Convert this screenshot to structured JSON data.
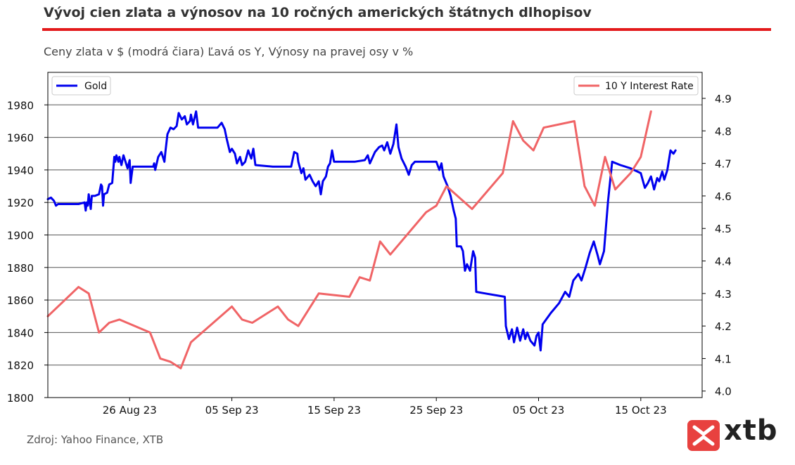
{
  "header": {
    "title": "Vývoj cien zlata a výnosov na 10 ročných amerických štátnych dlhopisov",
    "subtitle": "Ceny zlata v $ (modrá čiara) Ľavá os Y, Výnosy na pravej osy v %",
    "accent_color": "#e3191b"
  },
  "footer": {
    "source": "Zdroj: Yahoo Finance, XTB",
    "logo_text": "xtb",
    "logo_color": "#e8413f"
  },
  "chart_data": {
    "type": "line",
    "title": "",
    "x_domain": [
      17,
      81
    ],
    "x_ticks": [
      {
        "x": 25,
        "label": "26 Aug 23"
      },
      {
        "x": 35,
        "label": "05 Sep 23"
      },
      {
        "x": 45,
        "label": "15 Sep 23"
      },
      {
        "x": 55,
        "label": "25 Sep 23"
      },
      {
        "x": 65,
        "label": "05 Oct 23"
      },
      {
        "x": 75,
        "label": "15 Oct 23"
      }
    ],
    "y_left": {
      "min": 1800,
      "max": 2000,
      "ticks": [
        1800,
        1820,
        1840,
        1860,
        1880,
        1900,
        1920,
        1940,
        1960,
        1980
      ]
    },
    "y_right": {
      "min": 3.98,
      "max": 4.98,
      "ticks": [
        "4.0",
        "4.1",
        "4.2",
        "4.3",
        "4.4",
        "4.5",
        "4.6",
        "4.7",
        "4.8",
        "4.9"
      ]
    },
    "grid": "horizontal",
    "legend_left": "top-left",
    "legend_right": "top-right",
    "series": [
      {
        "name": "Gold",
        "axis": "left",
        "color": "#0000ee",
        "points": [
          [
            17.0,
            1922
          ],
          [
            17.3,
            1923
          ],
          [
            17.6,
            1921
          ],
          [
            17.8,
            1918
          ],
          [
            18.0,
            1919
          ],
          [
            18.5,
            1919
          ],
          [
            20.0,
            1919
          ],
          [
            20.6,
            1920
          ],
          [
            20.7,
            1915
          ],
          [
            20.8,
            1920
          ],
          [
            20.9,
            1918
          ],
          [
            21.0,
            1925
          ],
          [
            21.2,
            1916
          ],
          [
            21.3,
            1924
          ],
          [
            21.6,
            1924
          ],
          [
            22.0,
            1925
          ],
          [
            22.2,
            1931
          ],
          [
            22.3,
            1930
          ],
          [
            22.4,
            1918
          ],
          [
            22.5,
            1925
          ],
          [
            22.8,
            1926
          ],
          [
            23.0,
            1931
          ],
          [
            23.3,
            1932
          ],
          [
            23.5,
            1948
          ],
          [
            23.6,
            1945
          ],
          [
            23.7,
            1949
          ],
          [
            23.9,
            1945
          ],
          [
            24.0,
            1948
          ],
          [
            24.2,
            1943
          ],
          [
            24.4,
            1949
          ],
          [
            24.6,
            1945
          ],
          [
            24.8,
            1941
          ],
          [
            25.0,
            1946
          ],
          [
            25.1,
            1932
          ],
          [
            25.3,
            1942
          ],
          [
            26.0,
            1942
          ],
          [
            26.8,
            1942
          ],
          [
            27.3,
            1942
          ],
          [
            27.4,
            1944
          ],
          [
            27.5,
            1940
          ],
          [
            27.8,
            1948
          ],
          [
            28.1,
            1951
          ],
          [
            28.4,
            1945
          ],
          [
            28.5,
            1951
          ],
          [
            28.7,
            1962
          ],
          [
            29.0,
            1966
          ],
          [
            29.3,
            1965
          ],
          [
            29.6,
            1967
          ],
          [
            29.8,
            1975
          ],
          [
            30.1,
            1971
          ],
          [
            30.4,
            1973
          ],
          [
            30.6,
            1968
          ],
          [
            30.9,
            1970
          ],
          [
            31.0,
            1974
          ],
          [
            31.2,
            1968
          ],
          [
            31.5,
            1976
          ],
          [
            31.7,
            1966
          ],
          [
            33.6,
            1966
          ],
          [
            34.0,
            1969
          ],
          [
            34.3,
            1965
          ],
          [
            34.5,
            1959
          ],
          [
            34.8,
            1951
          ],
          [
            35.0,
            1953
          ],
          [
            35.3,
            1950
          ],
          [
            35.5,
            1944
          ],
          [
            35.8,
            1948
          ],
          [
            36.0,
            1943
          ],
          [
            36.3,
            1945
          ],
          [
            36.6,
            1952
          ],
          [
            36.9,
            1947
          ],
          [
            37.1,
            1953
          ],
          [
            37.3,
            1943
          ],
          [
            39.0,
            1942
          ],
          [
            40.8,
            1942
          ],
          [
            41.1,
            1951
          ],
          [
            41.4,
            1950
          ],
          [
            41.5,
            1945
          ],
          [
            41.8,
            1938
          ],
          [
            42.0,
            1941
          ],
          [
            42.2,
            1934
          ],
          [
            42.6,
            1937
          ],
          [
            42.9,
            1933
          ],
          [
            43.2,
            1930
          ],
          [
            43.5,
            1933
          ],
          [
            43.7,
            1925
          ],
          [
            43.9,
            1933
          ],
          [
            44.2,
            1936
          ],
          [
            44.4,
            1942
          ],
          [
            44.6,
            1944
          ],
          [
            44.8,
            1952
          ],
          [
            45.0,
            1945
          ],
          [
            47.0,
            1945
          ],
          [
            48.0,
            1946
          ],
          [
            48.3,
            1949
          ],
          [
            48.5,
            1944
          ],
          [
            49.0,
            1951
          ],
          [
            49.4,
            1954
          ],
          [
            49.7,
            1955
          ],
          [
            49.9,
            1952
          ],
          [
            50.2,
            1957
          ],
          [
            50.5,
            1950
          ],
          [
            50.8,
            1956
          ],
          [
            51.1,
            1968
          ],
          [
            51.3,
            1954
          ],
          [
            51.6,
            1947
          ],
          [
            52.0,
            1942
          ],
          [
            52.3,
            1937
          ],
          [
            52.6,
            1943
          ],
          [
            52.9,
            1945
          ],
          [
            53.2,
            1945
          ],
          [
            54.5,
            1945
          ],
          [
            55.0,
            1945
          ],
          [
            55.3,
            1940
          ],
          [
            55.5,
            1944
          ],
          [
            55.7,
            1936
          ],
          [
            56.1,
            1930
          ],
          [
            56.4,
            1924
          ],
          [
            56.7,
            1915
          ],
          [
            56.9,
            1910
          ],
          [
            57.0,
            1893
          ],
          [
            57.4,
            1893
          ],
          [
            57.6,
            1890
          ],
          [
            57.8,
            1878
          ],
          [
            58.0,
            1882
          ],
          [
            58.3,
            1878
          ],
          [
            58.6,
            1890
          ],
          [
            58.8,
            1886
          ],
          [
            58.9,
            1865
          ],
          [
            59.8,
            1864
          ],
          [
            61.7,
            1862
          ],
          [
            61.8,
            1844
          ],
          [
            62.1,
            1836
          ],
          [
            62.4,
            1842
          ],
          [
            62.6,
            1834
          ],
          [
            62.9,
            1843
          ],
          [
            63.2,
            1835
          ],
          [
            63.5,
            1842
          ],
          [
            63.7,
            1836
          ],
          [
            63.9,
            1840
          ],
          [
            64.2,
            1835
          ],
          [
            64.6,
            1832
          ],
          [
            64.8,
            1838
          ],
          [
            65.0,
            1840
          ],
          [
            65.2,
            1829
          ],
          [
            65.4,
            1845
          ],
          [
            66.2,
            1852
          ],
          [
            67.0,
            1858
          ],
          [
            67.6,
            1865
          ],
          [
            68.0,
            1862
          ],
          [
            68.4,
            1872
          ],
          [
            68.9,
            1876
          ],
          [
            69.2,
            1872
          ],
          [
            69.6,
            1880
          ],
          [
            70.0,
            1889
          ],
          [
            70.4,
            1896
          ],
          [
            70.8,
            1887
          ],
          [
            71.0,
            1882
          ],
          [
            71.4,
            1890
          ],
          [
            71.8,
            1921
          ],
          [
            72.2,
            1945
          ],
          [
            73.0,
            1943
          ],
          [
            74.0,
            1941
          ],
          [
            75.0,
            1938
          ],
          [
            75.4,
            1929
          ],
          [
            75.7,
            1932
          ],
          [
            76.0,
            1936
          ],
          [
            76.3,
            1928
          ],
          [
            76.6,
            1935
          ],
          [
            76.8,
            1933
          ],
          [
            77.1,
            1939
          ],
          [
            77.3,
            1934
          ],
          [
            77.6,
            1940
          ],
          [
            77.9,
            1952
          ],
          [
            78.2,
            1950
          ],
          [
            78.4,
            1952
          ]
        ]
      },
      {
        "name": "10 Y Interest Rate",
        "axis": "right",
        "color": "#f06466",
        "points": [
          [
            17.0,
            4.23
          ],
          [
            20.0,
            4.32
          ],
          [
            21.0,
            4.3
          ],
          [
            22.0,
            4.18
          ],
          [
            23.0,
            4.21
          ],
          [
            24.0,
            4.22
          ],
          [
            27.0,
            4.18
          ],
          [
            28.0,
            4.1
          ],
          [
            29.0,
            4.09
          ],
          [
            30.0,
            4.07
          ],
          [
            31.0,
            4.15
          ],
          [
            35.0,
            4.26
          ],
          [
            36.0,
            4.22
          ],
          [
            37.0,
            4.21
          ],
          [
            39.5,
            4.26
          ],
          [
            40.5,
            4.22
          ],
          [
            41.5,
            4.2
          ],
          [
            43.5,
            4.3
          ],
          [
            46.5,
            4.29
          ],
          [
            47.5,
            4.35
          ],
          [
            48.5,
            4.34
          ],
          [
            49.5,
            4.46
          ],
          [
            50.5,
            4.42
          ],
          [
            54.0,
            4.55
          ],
          [
            55.0,
            4.57
          ],
          [
            56.0,
            4.63
          ],
          [
            58.5,
            4.56
          ],
          [
            61.5,
            4.67
          ],
          [
            62.5,
            4.83
          ],
          [
            63.5,
            4.77
          ],
          [
            64.5,
            4.74
          ],
          [
            65.5,
            4.81
          ],
          [
            68.5,
            4.83
          ],
          [
            69.5,
            4.63
          ],
          [
            70.5,
            4.57
          ],
          [
            71.5,
            4.72
          ],
          [
            72.5,
            4.62
          ],
          [
            74.0,
            4.67
          ],
          [
            75.0,
            4.72
          ],
          [
            76.0,
            4.86
          ]
        ]
      }
    ]
  }
}
